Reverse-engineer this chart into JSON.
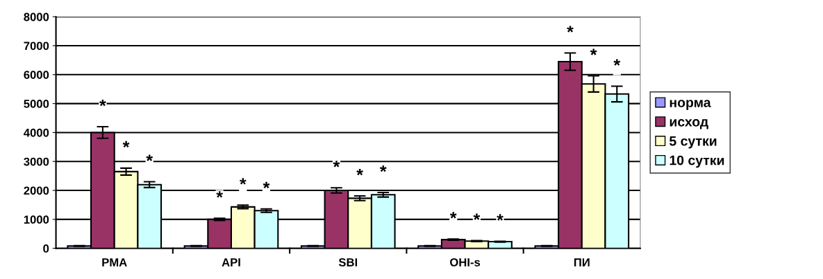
{
  "chart_data": {
    "type": "bar",
    "categories": [
      "PMA",
      "API",
      "SBI",
      "OHI-s",
      "ПИ"
    ],
    "series": [
      {
        "name": "норма",
        "color": "#9999ff",
        "values": [
          80,
          80,
          80,
          80,
          80
        ],
        "errors": [
          10,
          10,
          10,
          10,
          10
        ]
      },
      {
        "name": "исход",
        "color": "#993366",
        "values": [
          4000,
          1000,
          2000,
          300,
          6450
        ],
        "errors": [
          200,
          40,
          90,
          20,
          300
        ],
        "value_labels": [
          "*",
          "*",
          "*",
          "*",
          "*"
        ]
      },
      {
        "name": "5 сутки",
        "color": "#ffffcc",
        "values": [
          2650,
          1430,
          1730,
          250,
          5680
        ],
        "errors": [
          120,
          60,
          80,
          15,
          280
        ],
        "value_labels": [
          "*",
          "*",
          "*",
          "*",
          "*"
        ]
      },
      {
        "name": "10 сутки",
        "color": "#ccffff",
        "values": [
          2200,
          1300,
          1850,
          230,
          5330
        ],
        "errors": [
          100,
          60,
          80,
          15,
          270
        ],
        "value_labels": [
          "*",
          "*",
          "*",
          "*",
          "*"
        ]
      }
    ],
    "ylim": [
      0,
      8000
    ],
    "yticks": [
      0,
      1000,
      2000,
      3000,
      4000,
      5000,
      6000,
      7000,
      8000
    ],
    "grid": "y",
    "legend": "right"
  }
}
